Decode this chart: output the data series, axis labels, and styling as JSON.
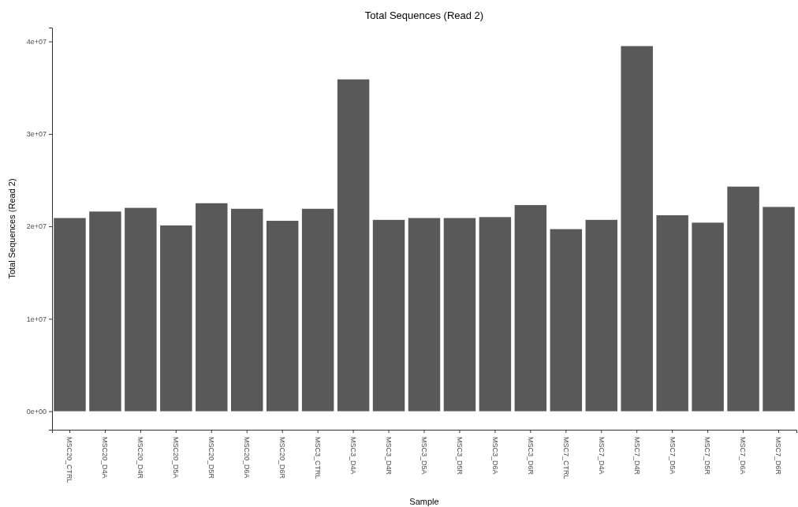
{
  "chart_data": {
    "type": "bar",
    "title": "Total Sequences (Read 2)",
    "xlabel": "Sample",
    "ylabel": "Total Sequences (Read 2)",
    "categories": [
      "MSC20_CTRL",
      "MSC20_D4A",
      "MSC20_D4R",
      "MSC20_D5A",
      "MSC20_D5R",
      "MSC20_D6A",
      "MSC20_D6R",
      "MSC3_CTRL",
      "MSC3_D4A",
      "MSC3_D4R",
      "MSC3_D5A",
      "MSC3_D5R",
      "MSC3_D6A",
      "MSC3_D6R",
      "MSC7_CTRL",
      "MSC7_D4A",
      "MSC7_D4R",
      "MSC7_D5A",
      "MSC7_D5R",
      "MSC7_D6A",
      "MSC7_D6R"
    ],
    "values": [
      20900000,
      21600000,
      22000000,
      20100000,
      22500000,
      21900000,
      20600000,
      21900000,
      35900000,
      20700000,
      20900000,
      20900000,
      21000000,
      22300000,
      19700000,
      20700000,
      39500000,
      21200000,
      20400000,
      24300000,
      22100000
    ],
    "color": "#595959",
    "ylim": [
      -2000000,
      41500000
    ],
    "yticks": [
      {
        "value": 0,
        "label": "0e+00"
      },
      {
        "value": 10000000,
        "label": "1e+07"
      },
      {
        "value": 20000000,
        "label": "2e+07"
      },
      {
        "value": 30000000,
        "label": "3e+07"
      },
      {
        "value": 40000000,
        "label": "4e+07"
      }
    ],
    "grid": false
  }
}
